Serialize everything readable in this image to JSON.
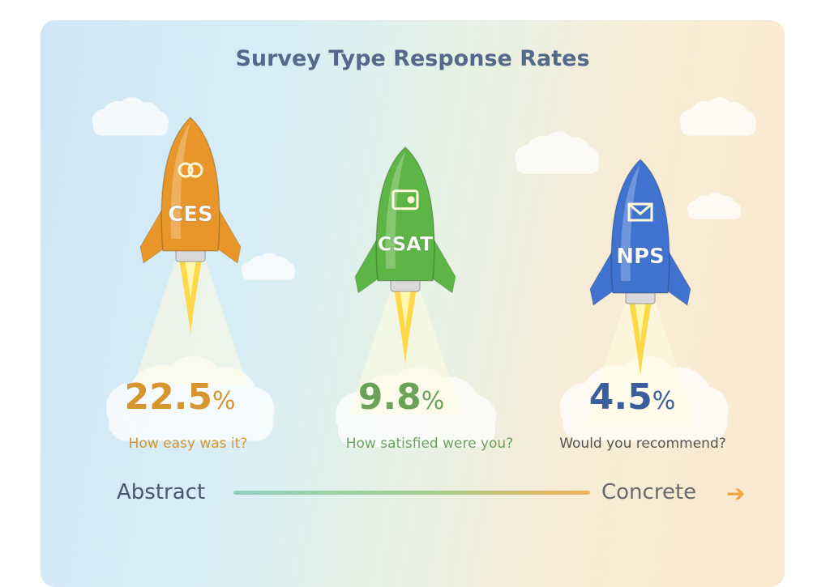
{
  "chart_data": {
    "type": "bar",
    "title": "Survey Type Response Rates",
    "categories": [
      "CES",
      "CSAT",
      "NPS"
    ],
    "values": [
      22.5,
      9.8,
      4.5
    ],
    "unit": "%",
    "questions": [
      "How easy was it?",
      "How satisfied were you?",
      "Would you recommend?"
    ],
    "colors": [
      "#e8962a",
      "#5cb544",
      "#3f73cf"
    ],
    "text_colors": [
      "#d6952e",
      "#6aa25a",
      "#3a5e9c"
    ],
    "icons": [
      "link-icon",
      "card-icon",
      "envelope-icon"
    ],
    "axis": {
      "left_label": "Abstract",
      "right_label": "Concrete",
      "arrow_icon": "arrow-right-icon"
    }
  }
}
